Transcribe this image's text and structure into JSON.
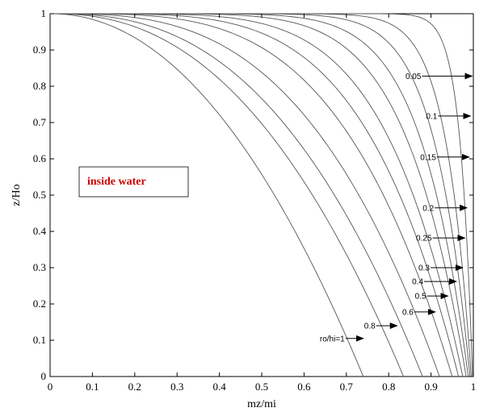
{
  "chart_data": {
    "type": "line",
    "title": "",
    "xlabel": "mz/mi",
    "ylabel": "z/Ho",
    "xlim": [
      0,
      1
    ],
    "ylim": [
      0,
      1
    ],
    "xticks": [
      "0",
      "0.1",
      "0.2",
      "0.3",
      "0.4",
      "0.5",
      "0.6",
      "0.7",
      "0.8",
      "0.9",
      "1"
    ],
    "yticks": [
      "0",
      "0.1",
      "0.2",
      "0.3",
      "0.4",
      "0.5",
      "0.6",
      "0.7",
      "0.8",
      "0.9",
      "1"
    ],
    "grid": false,
    "line_color": "#555555",
    "note": {
      "text": "inside water",
      "color": "#cc0000"
    },
    "series": [
      {
        "curve_end": 0.74,
        "label": "ro/hi=1",
        "label_y": 0.105,
        "arrow_tip": [
          0.74,
          0.105
        ]
      },
      {
        "curve_end": 0.835,
        "label": "0.8",
        "label_y": 0.14,
        "arrow_tip": [
          0.82,
          0.14
        ]
      },
      {
        "curve_end": 0.88
      },
      {
        "curve_end": 0.92,
        "label": "0.6",
        "label_y": 0.178,
        "arrow_tip": [
          0.91,
          0.178
        ]
      },
      {
        "curve_end": 0.95,
        "label": "0.5",
        "label_y": 0.222,
        "arrow_tip": [
          0.94,
          0.222
        ]
      },
      {
        "curve_end": 0.965,
        "label": "0.4",
        "label_y": 0.262,
        "arrow_tip": [
          0.96,
          0.262
        ]
      },
      {
        "curve_end": 0.975,
        "label": "0.3",
        "label_y": 0.3,
        "arrow_tip": [
          0.975,
          0.3
        ]
      },
      {
        "curve_end": 0.983,
        "label": "0.25",
        "label_y": 0.382,
        "arrow_tip": [
          0.98,
          0.382
        ]
      },
      {
        "curve_end": 0.988,
        "label": "0.2",
        "label_y": 0.465,
        "arrow_tip": [
          0.985,
          0.465
        ]
      },
      {
        "curve_end": 0.992,
        "label": "0.15",
        "label_y": 0.605,
        "arrow_tip": [
          0.99,
          0.605
        ]
      },
      {
        "curve_end": 0.995,
        "label": "0.1",
        "label_y": 0.718,
        "arrow_tip": [
          0.993,
          0.718
        ]
      },
      {
        "curve_end": 0.998,
        "label": "0.05",
        "label_y": 0.828,
        "arrow_tip": [
          0.997,
          0.828
        ]
      }
    ]
  }
}
